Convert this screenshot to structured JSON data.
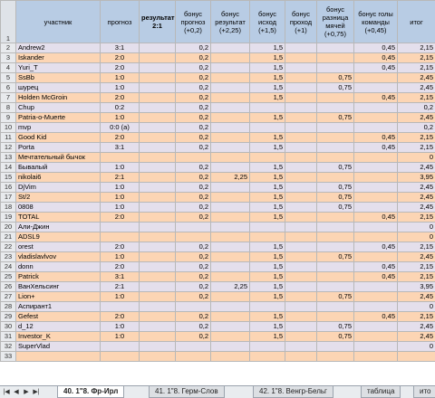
{
  "headers": [
    "участник",
    "прогноз",
    "результат: 2:1",
    "бонус прогноз (+0,2)",
    "бонус результат (+2,25)",
    "бонус исход (+1,5)",
    "бонус проход (+1)",
    "бонус разница мячей (+0,75)",
    "бонус голы команды (+0,45)",
    "итог"
  ],
  "header_row_number": "1",
  "rows": [
    {
      "n": "2",
      "v": [
        "Andrew2",
        "3:1",
        "",
        "0,2",
        "",
        "1,5",
        "",
        "",
        "0,45",
        "2,15"
      ]
    },
    {
      "n": "3",
      "v": [
        "Iskander",
        "2:0",
        "",
        "0,2",
        "",
        "1,5",
        "",
        "",
        "0,45",
        "2,15"
      ]
    },
    {
      "n": "4",
      "v": [
        "Yuri_T",
        "2:0",
        "",
        "0,2",
        "",
        "1,5",
        "",
        "",
        "0,45",
        "2,15"
      ]
    },
    {
      "n": "5",
      "v": [
        "SsBb",
        "1:0",
        "",
        "0,2",
        "",
        "1,5",
        "",
        "0,75",
        "",
        "2,45"
      ]
    },
    {
      "n": "6",
      "v": [
        "шурец",
        "1:0",
        "",
        "0,2",
        "",
        "1,5",
        "",
        "0,75",
        "",
        "2,45"
      ]
    },
    {
      "n": "7",
      "v": [
        "Holden McGroin",
        "2:0",
        "",
        "0,2",
        "",
        "1,5",
        "",
        "",
        "0,45",
        "2,15"
      ]
    },
    {
      "n": "8",
      "v": [
        "Chup",
        "0:2",
        "",
        "0,2",
        "",
        "",
        "",
        "",
        "",
        "0,2"
      ]
    },
    {
      "n": "9",
      "v": [
        "Patria-o-Muerte",
        "1:0",
        "",
        "0,2",
        "",
        "1,5",
        "",
        "0,75",
        "",
        "2,45"
      ]
    },
    {
      "n": "10",
      "v": [
        "mvp",
        "0:0 (a)",
        "",
        "0,2",
        "",
        "",
        "",
        "",
        "",
        "0,2"
      ]
    },
    {
      "n": "11",
      "v": [
        "Good Kid",
        "2:0",
        "",
        "0,2",
        "",
        "1,5",
        "",
        "",
        "0,45",
        "2,15"
      ]
    },
    {
      "n": "12",
      "v": [
        "Porta",
        "3:1",
        "",
        "0,2",
        "",
        "1,5",
        "",
        "",
        "0,45",
        "2,15"
      ]
    },
    {
      "n": "13",
      "v": [
        "Мечтательный бычок",
        "",
        "",
        "",
        "",
        "",
        "",
        "",
        "",
        "0"
      ]
    },
    {
      "n": "14",
      "v": [
        "Бывалый",
        "1:0",
        "",
        "0,2",
        "",
        "1,5",
        "",
        "0,75",
        "",
        "2,45"
      ]
    },
    {
      "n": "15",
      "v": [
        "nikolai6",
        "2:1",
        "",
        "0,2",
        "2,25",
        "1,5",
        "",
        "",
        "",
        "3,95"
      ]
    },
    {
      "n": "16",
      "v": [
        "DjVim",
        "1:0",
        "",
        "0,2",
        "",
        "1,5",
        "",
        "0,75",
        "",
        "2,45"
      ]
    },
    {
      "n": "17",
      "v": [
        "St/2",
        "1:0",
        "",
        "0,2",
        "",
        "1,5",
        "",
        "0,75",
        "",
        "2,45"
      ]
    },
    {
      "n": "18",
      "v": [
        "0808",
        "1:0",
        "",
        "0,2",
        "",
        "1,5",
        "",
        "0,75",
        "",
        "2,45"
      ]
    },
    {
      "n": "19",
      "v": [
        "TOTAL",
        "2:0",
        "",
        "0,2",
        "",
        "1,5",
        "",
        "",
        "0,45",
        "2,15"
      ]
    },
    {
      "n": "20",
      "v": [
        "Али-Джин",
        "",
        "",
        "",
        "",
        "",
        "",
        "",
        "",
        "0"
      ]
    },
    {
      "n": "21",
      "v": [
        "ADSL9",
        "",
        "",
        "",
        "",
        "",
        "",
        "",
        "",
        "0"
      ]
    },
    {
      "n": "22",
      "v": [
        "orest",
        "2:0",
        "",
        "0,2",
        "",
        "1,5",
        "",
        "",
        "0,45",
        "2,15"
      ]
    },
    {
      "n": "23",
      "v": [
        "vladislavlvov",
        "1:0",
        "",
        "0,2",
        "",
        "1,5",
        "",
        "0,75",
        "",
        "2,45"
      ]
    },
    {
      "n": "24",
      "v": [
        "donn",
        "2:0",
        "",
        "0,2",
        "",
        "1,5",
        "",
        "",
        "0,45",
        "2,15"
      ]
    },
    {
      "n": "25",
      "v": [
        "Patrick",
        "3:1",
        "",
        "0,2",
        "",
        "1,5",
        "",
        "",
        "0,45",
        "2,15"
      ]
    },
    {
      "n": "26",
      "v": [
        "ВанХельсинг",
        "2:1",
        "",
        "0,2",
        "2,25",
        "1,5",
        "",
        "",
        "",
        "3,95"
      ]
    },
    {
      "n": "27",
      "v": [
        "Lion+",
        "1:0",
        "",
        "0,2",
        "",
        "1,5",
        "",
        "0,75",
        "",
        "2,45"
      ]
    },
    {
      "n": "28",
      "v": [
        "Аспирант1",
        "",
        "",
        "",
        "",
        "",
        "",
        "",
        "",
        "0"
      ]
    },
    {
      "n": "29",
      "v": [
        "Gefest",
        "2:0",
        "",
        "0,2",
        "",
        "1,5",
        "",
        "",
        "0,45",
        "2,15"
      ]
    },
    {
      "n": "30",
      "v": [
        "d_12",
        "1:0",
        "",
        "0,2",
        "",
        "1,5",
        "",
        "0,75",
        "",
        "2,45"
      ]
    },
    {
      "n": "31",
      "v": [
        "Investor_K",
        "1:0",
        "",
        "0,2",
        "",
        "1,5",
        "",
        "0,75",
        "",
        "2,45"
      ]
    },
    {
      "n": "32",
      "v": [
        "SuperVlad",
        "",
        "",
        "",
        "",
        "",
        "",
        "",
        "",
        "0"
      ]
    },
    {
      "n": "33",
      "v": [
        "",
        "",
        "",
        "",
        "",
        "",
        "",
        "",
        "",
        ""
      ]
    }
  ],
  "tabs": [
    "40. 1\"8. Фр-Ирл",
    "41. 1\"8. Герм-Слов",
    "42. 1\"8. Венгр-Бельг",
    "таблица",
    "ито"
  ],
  "active_tab": 0,
  "colors": {
    "header": "#b8cce4",
    "lavender": "#e4dfec",
    "peach": "#fcd5b4",
    "name_highlight": "#ccc0da",
    "gridline": "#b8b8b8"
  }
}
